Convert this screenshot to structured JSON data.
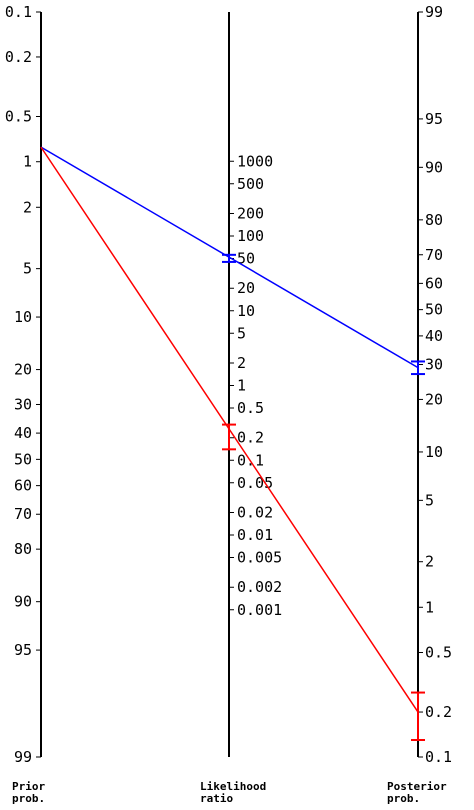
{
  "chart_data": {
    "type": "line",
    "title": "",
    "axes": {
      "prior": {
        "name_lines": [
          "Prior",
          "prob."
        ],
        "tick_labels": [
          "0.1",
          "0.2",
          "0.5",
          "1",
          "2",
          "5",
          "10",
          "20",
          "30",
          "40",
          "50",
          "60",
          "70",
          "80",
          "90",
          "95",
          "99"
        ],
        "unit": "%"
      },
      "likelihood_ratio": {
        "name_lines": [
          "Likelihood",
          "ratio"
        ],
        "tick_labels": [
          "1000",
          "500",
          "200",
          "100",
          "50",
          "20",
          "10",
          "5",
          "2",
          "1",
          "0.5",
          "0.2",
          "0.1",
          "0.05",
          "0.02",
          "0.01",
          "0.005",
          "0.002",
          "0.001"
        ]
      },
      "posterior": {
        "name_lines": [
          "Posterior",
          "prob."
        ],
        "tick_labels": [
          "99",
          "95",
          "90",
          "80",
          "70",
          "60",
          "50",
          "40",
          "30",
          "20",
          "10",
          "5",
          "2",
          "1",
          "0.5",
          "0.2",
          "0.1"
        ],
        "unit": "%"
      }
    },
    "series": [
      {
        "color": "#0000ff",
        "prior_prob_pct": 0.8,
        "likelihood_ratio": 50,
        "likelihood_ratio_ci": [
          45,
          56
        ],
        "posterior_prob_pct": 29,
        "posterior_prob_ci_pct": [
          27,
          31
        ]
      },
      {
        "color": "#ff0000",
        "prior_prob_pct": 0.8,
        "likelihood_ratio": 0.2,
        "likelihood_ratio_ci": [
          0.14,
          0.3
        ],
        "posterior_prob_pct": 0.2,
        "posterior_prob_ci_pct": [
          0.13,
          0.27
        ]
      }
    ],
    "grid": false,
    "legend": "none"
  }
}
